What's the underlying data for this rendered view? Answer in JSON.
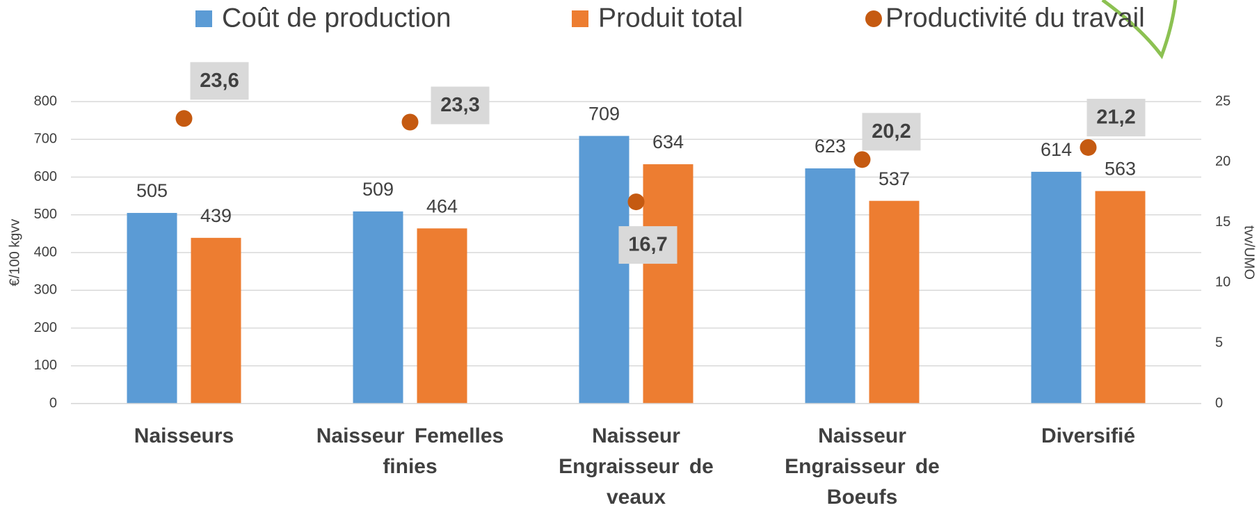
{
  "chart_data": {
    "type": "bar",
    "categories": [
      "Naisseurs",
      "Naisseur Femelles finies",
      "Naisseur Engraisseur de veaux",
      "Naisseur Engraisseur de Boeufs",
      "Diversifié"
    ],
    "series": [
      {
        "name": "Coût de production",
        "color": "#5b9bd5",
        "values": [
          505,
          509,
          709,
          623,
          614
        ]
      },
      {
        "name": "Produit total",
        "color": "#ed7d31",
        "values": [
          439,
          464,
          634,
          537,
          563
        ]
      },
      {
        "name": "Productivité du travail",
        "type": "scatter",
        "axis": "y2",
        "color": "#c55a11",
        "values": [
          23.6,
          23.3,
          16.7,
          20.2,
          21.2
        ],
        "value_labels": [
          "23,6",
          "23,3",
          "16,7",
          "20,2",
          "21,2"
        ]
      }
    ],
    "ylabel": "€/100 kgvv",
    "y2label": "tvv/UMO",
    "ylim": [
      0,
      800
    ],
    "yticks": [
      0,
      100,
      200,
      300,
      400,
      500,
      600,
      700,
      800
    ],
    "y2lim": [
      0,
      25
    ],
    "y2ticks": [
      0,
      5,
      10,
      15,
      20,
      25
    ],
    "grid": true,
    "legend": "top"
  }
}
